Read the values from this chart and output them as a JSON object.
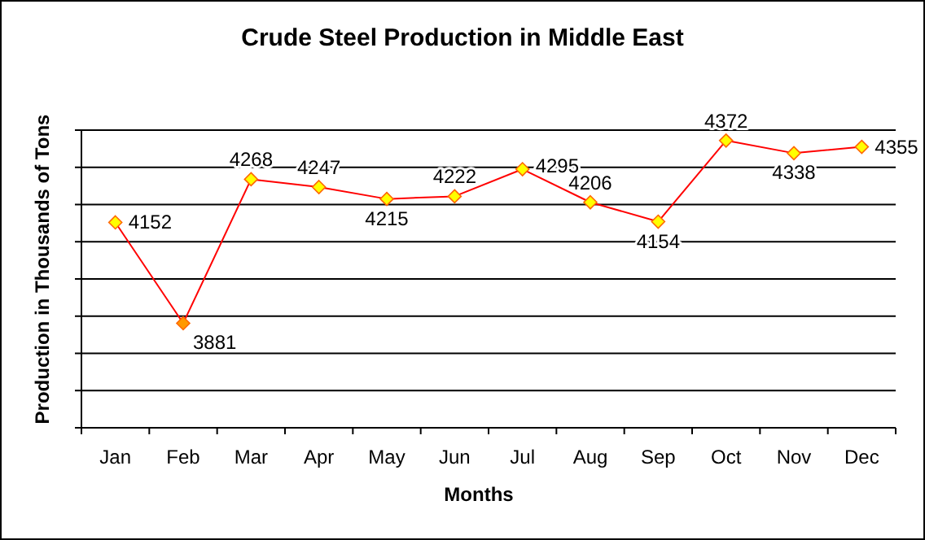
{
  "chart_data": {
    "type": "line",
    "title": "Crude Steel Production in Middle East",
    "xlabel": "Months",
    "ylabel": "Production in Thousands of Tons",
    "categories": [
      "Jan",
      "Feb",
      "Mar",
      "Apr",
      "May",
      "Jun",
      "Jul",
      "Aug",
      "Sep",
      "Oct",
      "Nov",
      "Dec"
    ],
    "series": [
      {
        "color": "#ff0000",
        "values": [
          4152,
          3881,
          4268,
          4247,
          4215,
          4222,
          4295,
          4206,
          4154,
          4372,
          4338,
          4355
        ]
      }
    ],
    "ylim": [
      3600,
      4400
    ],
    "yticks": [
      {
        "value": 3600,
        "label": null
      },
      {
        "value": 3700,
        "label": null
      },
      {
        "value": 3800,
        "label": null
      },
      {
        "value": 3900,
        "label": null
      },
      {
        "value": 4000,
        "label": null
      },
      {
        "value": 4100,
        "label": null
      },
      {
        "value": 4200,
        "label": null
      },
      {
        "value": 4300,
        "label": null
      },
      {
        "value": 4400,
        "label": null
      }
    ],
    "tick_labels": "x",
    "grid": "y",
    "marker": "diamond",
    "line_style": "solid",
    "data_labels": true
  }
}
